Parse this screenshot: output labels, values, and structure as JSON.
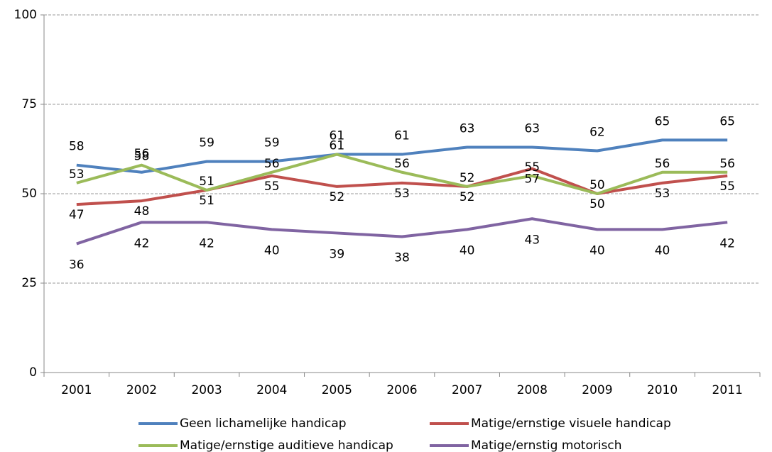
{
  "chart_data": {
    "type": "line",
    "categories": [
      "2001",
      "2002",
      "2003",
      "2004",
      "2005",
      "2006",
      "2007",
      "2008",
      "2009",
      "2010",
      "2011"
    ],
    "series": [
      {
        "name": "Geen lichamelijke handicap",
        "color": "#4f81bd",
        "values": [
          58,
          56,
          59,
          59,
          61,
          61,
          63,
          63,
          62,
          65,
          65
        ]
      },
      {
        "name": "Matige/ernstige visuele handicap",
        "color": "#c0504d",
        "values": [
          47,
          48,
          51,
          55,
          52,
          53,
          52,
          57,
          50,
          53,
          55
        ]
      },
      {
        "name": "Matige/ernstige auditieve handicap",
        "color": "#9bbb59",
        "values": [
          53,
          58,
          51,
          56,
          61,
          56,
          52,
          55,
          50,
          56,
          56
        ]
      },
      {
        "name": "Matige/ernstig motorisch",
        "color": "#8064a2",
        "values": [
          36,
          42,
          42,
          40,
          39,
          38,
          40,
          43,
          40,
          40,
          42
        ]
      }
    ],
    "ylim": [
      0,
      100
    ],
    "yticks": [
      0,
      25,
      50,
      75,
      100
    ],
    "grid": true,
    "legend": "bottom"
  }
}
